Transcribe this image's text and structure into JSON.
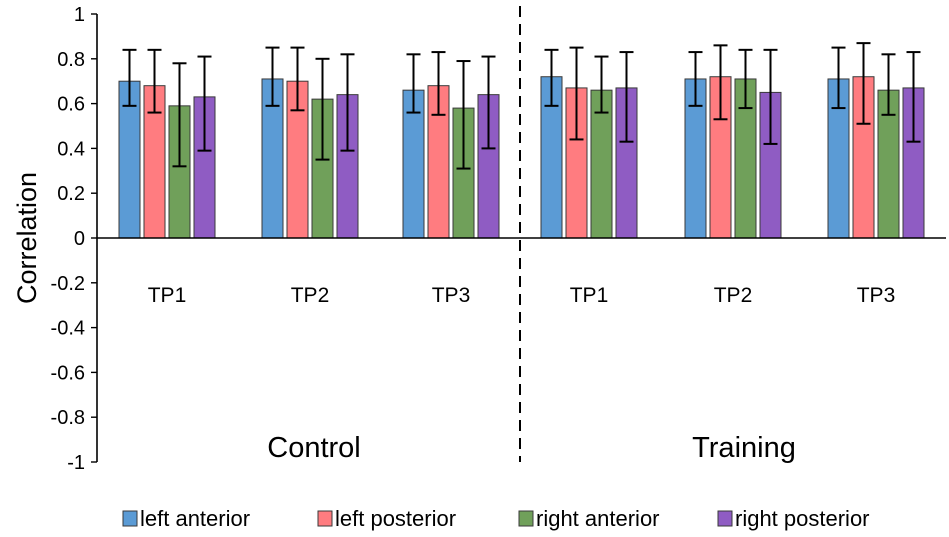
{
  "chart_data": {
    "type": "bar",
    "ylabel": "Correlation",
    "xlabel": "",
    "ylim": [
      -1,
      1
    ],
    "yticks": [
      "1",
      "0.8",
      "0.6",
      "0.4",
      "0.2",
      "0",
      "-0.2",
      "-0.4",
      "-0.6",
      "-0.8",
      "-1"
    ],
    "groups": [
      "Control",
      "Training"
    ],
    "categories": [
      "TP1",
      "TP2",
      "TP3",
      "TP1",
      "TP2",
      "TP3"
    ],
    "category_group": [
      0,
      0,
      0,
      1,
      1,
      1
    ],
    "series": [
      {
        "name": "left anterior",
        "color": "#5b9bd5",
        "values": [
          0.7,
          0.71,
          0.66,
          0.72,
          0.71,
          0.71
        ],
        "err_low": [
          0.59,
          0.59,
          0.56,
          0.59,
          0.59,
          0.58
        ],
        "err_high": [
          0.84,
          0.85,
          0.82,
          0.84,
          0.83,
          0.85
        ]
      },
      {
        "name": "left posterior",
        "color": "#ff7c80",
        "values": [
          0.68,
          0.7,
          0.68,
          0.67,
          0.72,
          0.72
        ],
        "err_low": [
          0.56,
          0.57,
          0.55,
          0.44,
          0.53,
          0.51
        ],
        "err_high": [
          0.84,
          0.85,
          0.83,
          0.85,
          0.86,
          0.87
        ]
      },
      {
        "name": "right anterior",
        "color": "#70a05a",
        "values": [
          0.59,
          0.62,
          0.58,
          0.66,
          0.71,
          0.66
        ],
        "err_low": [
          0.32,
          0.35,
          0.31,
          0.56,
          0.58,
          0.55
        ],
        "err_high": [
          0.78,
          0.8,
          0.79,
          0.81,
          0.84,
          0.82
        ]
      },
      {
        "name": "right posterior",
        "color": "#8f5cc3",
        "values": [
          0.63,
          0.64,
          0.64,
          0.67,
          0.65,
          0.67
        ],
        "err_low": [
          0.39,
          0.39,
          0.4,
          0.43,
          0.42,
          0.43
        ],
        "err_high": [
          0.81,
          0.82,
          0.81,
          0.83,
          0.84,
          0.83
        ]
      }
    ]
  }
}
